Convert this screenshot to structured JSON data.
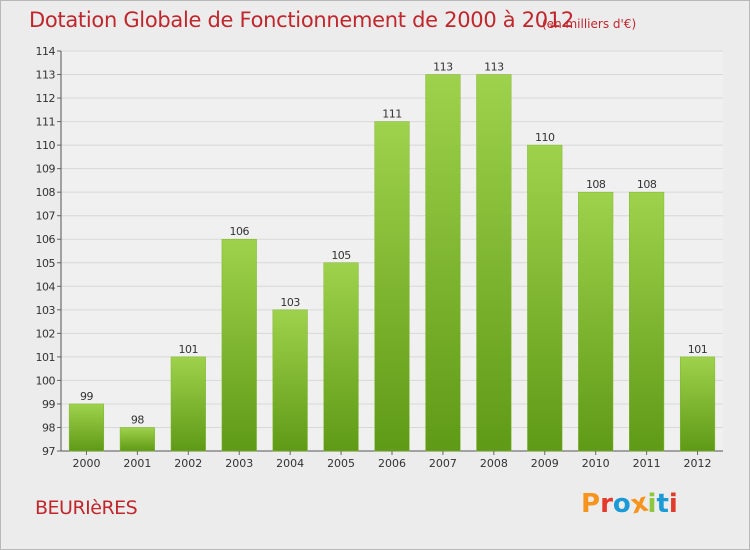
{
  "header": {
    "title": "Dotation Globale de Fonctionnement de 2000 à 2012",
    "unit": "(en milliers d'€)"
  },
  "footer": {
    "commune": "BEURIèRES",
    "logo_text": "Proxiti"
  },
  "colors": {
    "title": "#c0272d",
    "bar_top": "#9fd24c",
    "bar_bottom": "#5f9a16",
    "axis_text": "#333333",
    "grid": "#d8d8d8",
    "frame_bg": "#ececec",
    "logo": [
      "#f7941d",
      "#e23a2b",
      "#1b9ad6",
      "#f7941d",
      "#8dc63f",
      "#1b9ad6",
      "#e23a2b"
    ]
  },
  "chart_data": {
    "type": "bar",
    "title": "Dotation Globale de Fonctionnement de 2000 à 2012",
    "subtitle": "(en milliers d'€)",
    "xlabel": "",
    "ylabel": "",
    "categories": [
      "2000",
      "2001",
      "2002",
      "2003",
      "2004",
      "2005",
      "2006",
      "2007",
      "2008",
      "2009",
      "2010",
      "2011",
      "2012"
    ],
    "values": [
      99,
      98,
      101,
      106,
      103,
      105,
      111,
      113,
      113,
      110,
      108,
      108,
      101
    ],
    "ylim": [
      97,
      114
    ],
    "yticks": [
      97,
      98,
      99,
      100,
      101,
      102,
      103,
      104,
      105,
      106,
      107,
      108,
      109,
      110,
      111,
      112,
      113,
      114
    ],
    "grid": true,
    "legend": "none"
  }
}
